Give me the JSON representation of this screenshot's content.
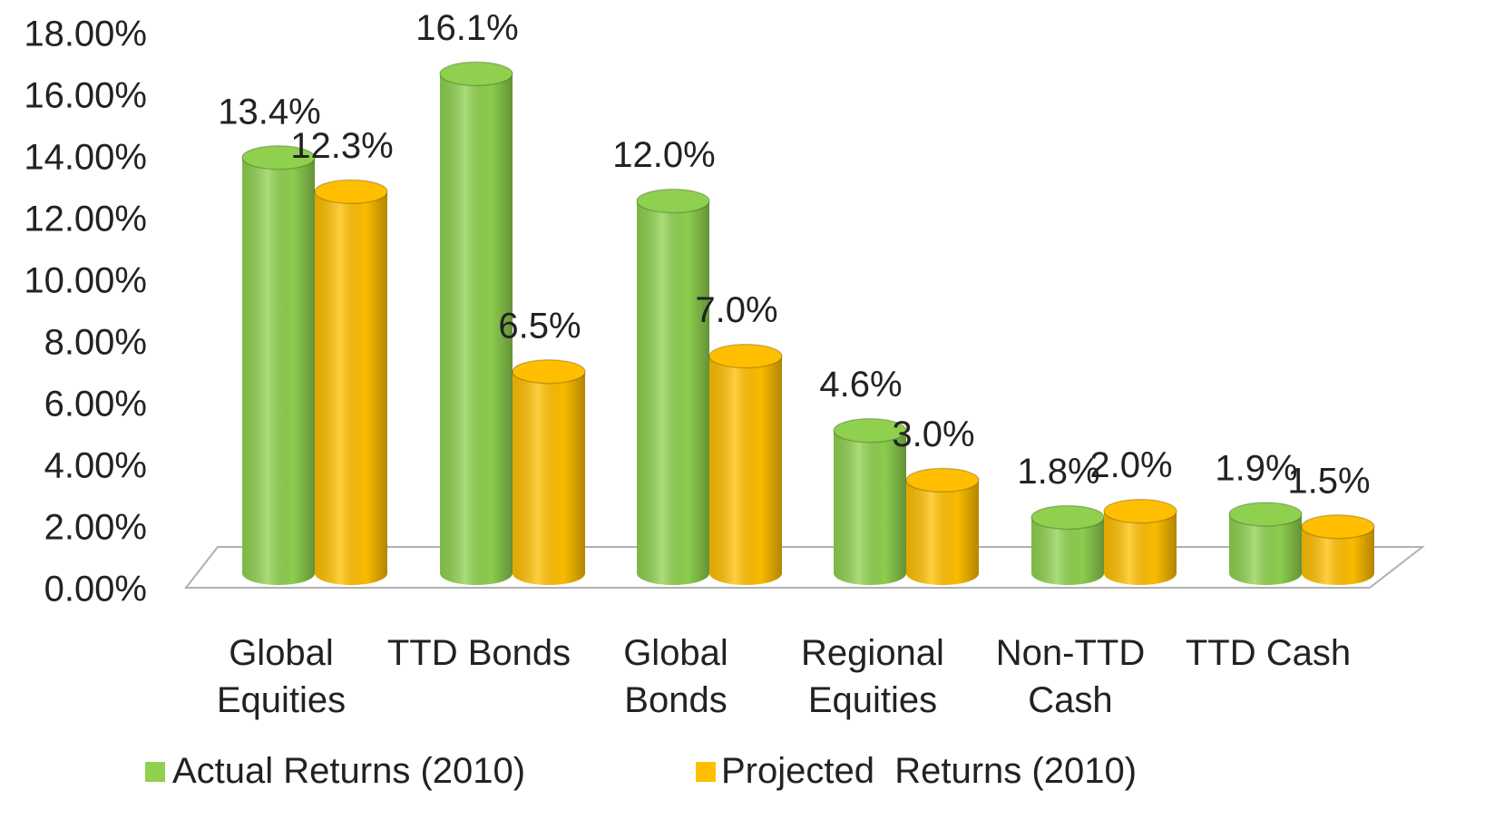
{
  "chart_data": {
    "type": "bar3d",
    "categories": [
      "Global Equities",
      "TTD Bonds",
      "Global Bonds",
      "Regional Equities",
      "Non-TTD Cash",
      "TTD Cash"
    ],
    "series": [
      {
        "name": "Actual Returns (2010)",
        "color": "#8fd14f",
        "values": [
          13.4,
          16.1,
          12.0,
          4.6,
          1.8,
          1.9
        ],
        "value_labels": [
          "13.4%",
          "16.1%",
          "12.0%",
          "4.6%",
          "1.8%",
          "1.9%"
        ]
      },
      {
        "name": "Projected  Returns (2010)",
        "color": "#ffbf00",
        "values": [
          12.3,
          6.5,
          7.0,
          3.0,
          2.0,
          1.5
        ],
        "value_labels": [
          "12.3%",
          "6.5%",
          "7.0%",
          "3.0%",
          "2.0%",
          "1.5%"
        ]
      }
    ],
    "ylim": [
      0,
      18
    ],
    "yticks": [
      {
        "value": 0,
        "label": "0.00%"
      },
      {
        "value": 2,
        "label": "2.00%"
      },
      {
        "value": 4,
        "label": "4.00%"
      },
      {
        "value": 6,
        "label": "6.00%"
      },
      {
        "value": 8,
        "label": "8.00%"
      },
      {
        "value": 10,
        "label": "10.00%"
      },
      {
        "value": 12,
        "label": "12.00%"
      },
      {
        "value": 14,
        "label": "14.00%"
      },
      {
        "value": 16,
        "label": "16.00%"
      },
      {
        "value": 18,
        "label": "18.00%"
      }
    ]
  }
}
